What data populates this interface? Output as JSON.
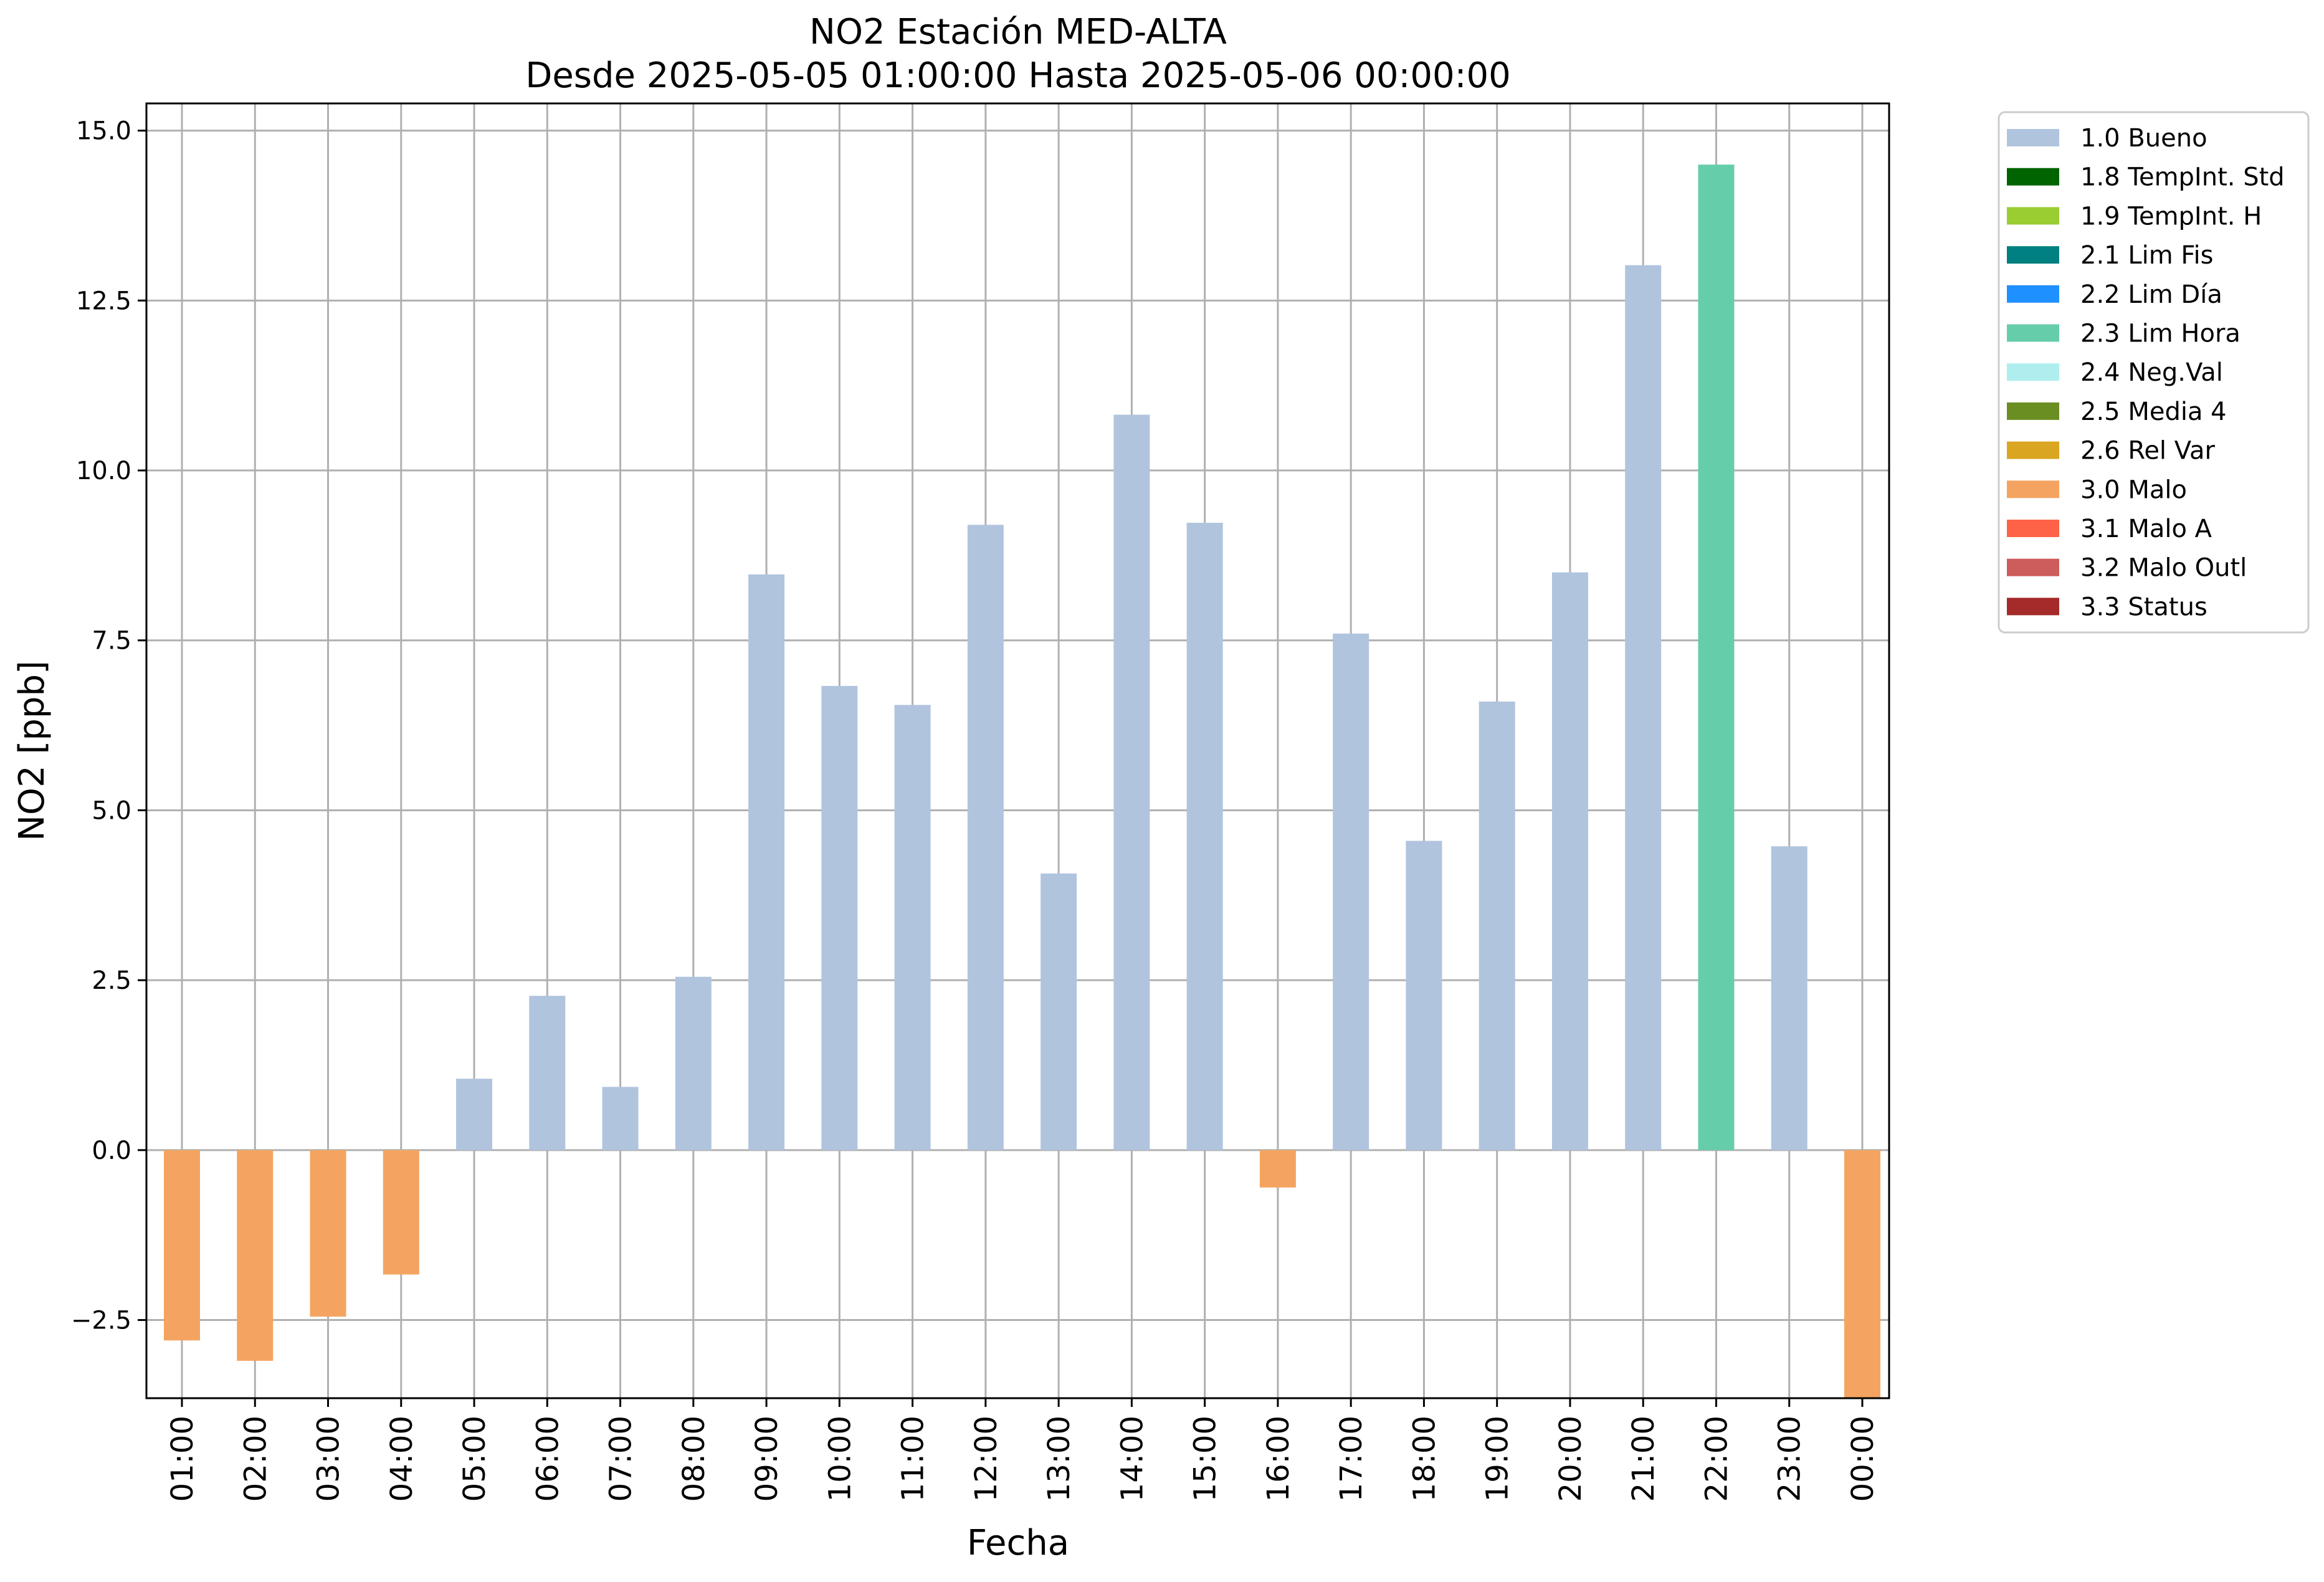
{
  "chart_data": {
    "type": "bar",
    "title": "NO2 Estación MED-ALTA",
    "subtitle": "Desde 2025-05-05 01:00:00 Hasta 2025-05-06 00:00:00",
    "xlabel": "Fecha",
    "ylabel": "NO2 [ppb]",
    "ylim": [
      -3.65,
      15.4
    ],
    "yticks": [
      -2.5,
      0.0,
      2.5,
      5.0,
      7.5,
      10.0,
      12.5,
      15.0
    ],
    "ytick_labels": [
      "−2.5",
      "0.0",
      "2.5",
      "5.0",
      "7.5",
      "10.0",
      "12.5",
      "15.0"
    ],
    "grid": true,
    "legend_placement": "outside-top-right",
    "categories": [
      "01:00",
      "02:00",
      "03:00",
      "04:00",
      "05:00",
      "06:00",
      "07:00",
      "08:00",
      "09:00",
      "10:00",
      "11:00",
      "12:00",
      "13:00",
      "14:00",
      "15:00",
      "16:00",
      "17:00",
      "18:00",
      "19:00",
      "20:00",
      "21:00",
      "22:00",
      "23:00",
      "00:00"
    ],
    "values": [
      -2.8,
      -3.1,
      -2.45,
      -1.83,
      1.05,
      2.27,
      0.93,
      2.55,
      8.47,
      6.83,
      6.55,
      9.2,
      4.07,
      10.82,
      9.23,
      -0.55,
      7.6,
      4.55,
      6.6,
      8.5,
      13.02,
      14.5,
      4.47,
      -3.65
    ],
    "flags": [
      "3.0 Malo",
      "3.0 Malo",
      "3.0 Malo",
      "3.0 Malo",
      "1.0 Bueno",
      "1.0 Bueno",
      "1.0 Bueno",
      "1.0 Bueno",
      "1.0 Bueno",
      "1.0 Bueno",
      "1.0 Bueno",
      "1.0 Bueno",
      "1.0 Bueno",
      "1.0 Bueno",
      "1.0 Bueno",
      "3.0 Malo",
      "1.0 Bueno",
      "1.0 Bueno",
      "1.0 Bueno",
      "1.0 Bueno",
      "1.0 Bueno",
      "2.3 Lim Hora",
      "1.0 Bueno",
      "3.0 Malo"
    ],
    "legend": [
      {
        "label": "1.0 Bueno",
        "color": "#b0c4de"
      },
      {
        "label": "1.8 TempInt. Std",
        "color": "#006400"
      },
      {
        "label": "1.9 TempInt. H",
        "color": "#9acd32"
      },
      {
        "label": "2.1 Lim Fis",
        "color": "#008080"
      },
      {
        "label": "2.2 Lim Día",
        "color": "#1e90ff"
      },
      {
        "label": "2.3 Lim Hora",
        "color": "#66cdaa"
      },
      {
        "label": "2.4 Neg.Val",
        "color": "#afeeee"
      },
      {
        "label": "2.5 Media 4",
        "color": "#6b8e23"
      },
      {
        "label": "2.6 Rel Var",
        "color": "#daa520"
      },
      {
        "label": "3.0 Malo",
        "color": "#f4a460"
      },
      {
        "label": "3.1 Malo A",
        "color": "#ff6347"
      },
      {
        "label": "3.2 Malo Outl",
        "color": "#cd5c5c"
      },
      {
        "label": "3.3 Status",
        "color": "#a52a2a"
      }
    ]
  }
}
